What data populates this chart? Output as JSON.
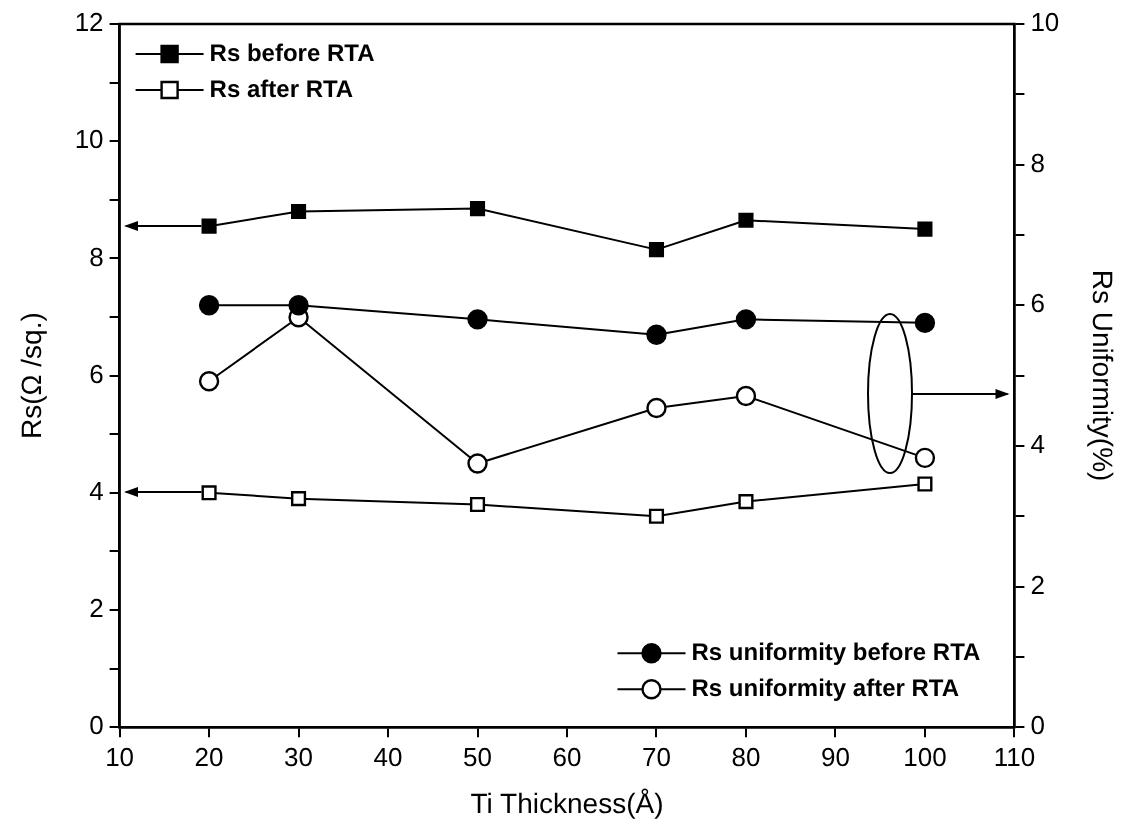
{
  "chart_data": {
    "type": "line",
    "xlabel": "Ti Thickness(Å)",
    "ylabel": "Rs(Ω /sq.)",
    "y2label": "Rs Uniformity(%)",
    "x": [
      20,
      30,
      50,
      70,
      80,
      100
    ],
    "series": [
      {
        "name": "Rs before RTA",
        "color": "#000000",
        "marker": "square",
        "values": [
          8.55,
          8.8,
          8.85,
          8.15,
          8.65,
          8.5
        ]
      },
      {
        "name": "Rs after RTA",
        "color": "#000000",
        "marker": "square",
        "values": [
          4.0,
          3.9,
          3.8,
          3.6,
          3.85,
          4.15
        ]
      },
      {
        "name": "Rs uniformity before RTA",
        "color": "#000000",
        "marker": "circle",
        "axis": "y2",
        "values": [
          6.0,
          6.0,
          5.8,
          5.58,
          5.8,
          5.75
        ]
      },
      {
        "name": "Rs uniformity after RTA",
        "color": "#000000",
        "marker": "circle",
        "axis": "y2",
        "values": [
          4.92,
          5.83,
          3.75,
          4.54,
          4.71,
          3.83
        ]
      }
    ],
    "xlim": [
      10,
      110
    ],
    "xticks": [
      10,
      20,
      30,
      40,
      50,
      60,
      70,
      80,
      90,
      100,
      110
    ],
    "ylim": [
      0,
      12
    ],
    "yticks": [
      0,
      {
        "value": 1,
        "label": null
      },
      2,
      {
        "value": 3,
        "label": null
      },
      4,
      {
        "value": 5,
        "label": null
      },
      6,
      {
        "value": 7,
        "label": null
      },
      8,
      {
        "value": 9,
        "label": null
      },
      10,
      {
        "value": 11,
        "label": null
      },
      12
    ],
    "y2lim": [
      0,
      10
    ],
    "y2ticks": [
      0,
      {
        "value": 1,
        "label": null
      },
      2,
      {
        "value": 3,
        "label": null
      },
      4,
      {
        "value": 5,
        "label": null
      },
      6,
      {
        "value": 7,
        "label": null
      },
      8,
      {
        "value": 9,
        "label": null
      },
      10
    ],
    "legend": "top left",
    "grid": false,
    "line_style": "solid"
  }
}
